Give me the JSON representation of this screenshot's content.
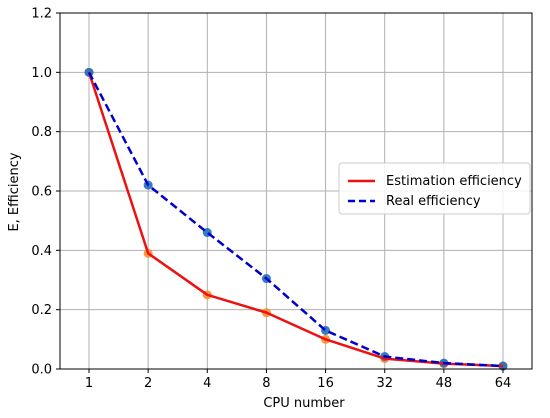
{
  "chart_data": {
    "type": "line",
    "title": "",
    "xlabel": "CPU number",
    "ylabel": "E, Efficiency",
    "categories": [
      "1",
      "2",
      "4",
      "8",
      "16",
      "32",
      "48",
      "64"
    ],
    "ylim": [
      0,
      1.2
    ],
    "yticks": [
      "0.0",
      "0.2",
      "0.4",
      "0.6",
      "0.8",
      "1.0",
      "1.2"
    ],
    "grid": true,
    "legend_position": "center-right",
    "series": [
      {
        "name": "Estimation efficiency",
        "values": [
          1.0,
          0.39,
          0.25,
          0.19,
          0.1,
          0.035,
          0.018,
          0.01
        ],
        "line_color": "#ee1111",
        "line_style": "solid",
        "marker_color": "#ff8c2a"
      },
      {
        "name": "Real efficiency",
        "values": [
          1.0,
          0.62,
          0.46,
          0.305,
          0.13,
          0.042,
          0.02,
          0.01
        ],
        "line_color": "#0000cc",
        "line_style": "dashed",
        "marker_color": "#1f6fc0"
      }
    ]
  }
}
